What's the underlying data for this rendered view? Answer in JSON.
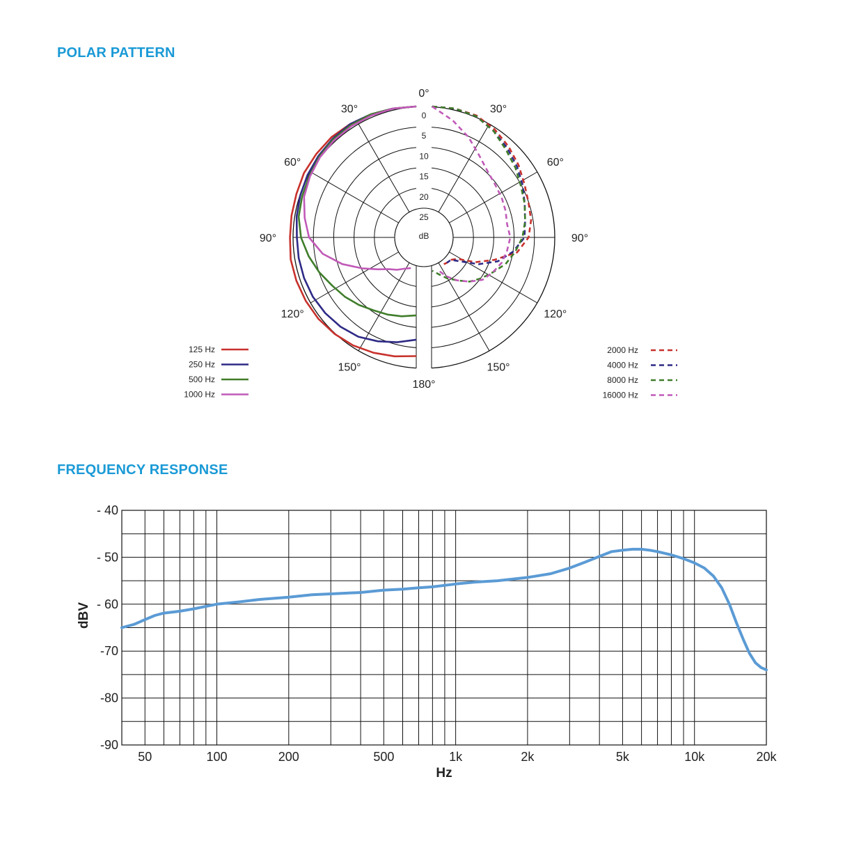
{
  "sections": {
    "polar_title": "POLAR PATTERN",
    "frequency_title": "FREQUENCY RESPONSE"
  },
  "colors": {
    "title": "#1a9ad6",
    "125 Hz": "#c8312c",
    "250 Hz": "#2e2a86",
    "500 Hz": "#3f7d2a",
    "1000 Hz": "#c05ab8",
    "2000 Hz": "#c8312c",
    "4000 Hz": "#2e2a86",
    "8000 Hz": "#3f7d2a",
    "16000 Hz": "#c05ab8",
    "response": "#5b9bd5"
  },
  "chart_data": [
    {
      "type": "polar",
      "angle_labels": [
        "0°",
        "30°",
        "60°",
        "90°",
        "120°",
        "150°",
        "180°",
        "30°",
        "60°",
        "90°",
        "120°",
        "150°"
      ],
      "radial_labels": [
        "0",
        "5",
        "10",
        "15",
        "20",
        "25"
      ],
      "center_label": "dB",
      "angle_unit": "degrees",
      "rlim": [
        0,
        25
      ],
      "legend_left": [
        "125 Hz",
        "250 Hz",
        "500 Hz",
        "1000 Hz"
      ],
      "legend_right": [
        "2000 Hz",
        "4000 Hz",
        "8000 Hz",
        "16000 Hz"
      ],
      "series": [
        {
          "name": "125 Hz",
          "side": "left",
          "style": "solid",
          "theta": [
            0,
            10,
            20,
            30,
            40,
            50,
            60,
            70,
            80,
            90,
            100,
            110,
            120,
            130,
            140,
            150,
            160,
            170,
            180
          ],
          "db": [
            0,
            0,
            0,
            0,
            0,
            0.3,
            0.5,
            1,
            1.2,
            1.3,
            1,
            1,
            1,
            1,
            1.2,
            1.5,
            2,
            2.5,
            3
          ]
        },
        {
          "name": "250 Hz",
          "side": "left",
          "style": "solid",
          "theta": [
            0,
            10,
            20,
            30,
            40,
            50,
            60,
            70,
            80,
            90,
            100,
            110,
            120,
            130,
            140,
            150,
            160,
            170,
            180
          ],
          "db": [
            0,
            0,
            0,
            0,
            0.5,
            1,
            1.5,
            2,
            2.5,
            3,
            3,
            3,
            3,
            3.2,
            3.5,
            4,
            5,
            6,
            7
          ]
        },
        {
          "name": "500 Hz",
          "side": "left",
          "style": "solid",
          "theta": [
            0,
            10,
            20,
            30,
            40,
            50,
            60,
            70,
            80,
            90,
            100,
            110,
            120,
            130,
            140,
            150,
            160,
            170,
            180
          ],
          "db": [
            0,
            0,
            0,
            0.3,
            0.7,
            1.3,
            2,
            2.5,
            3,
            4,
            5.5,
            7,
            8.5,
            9.5,
            10.5,
            11.5,
            12,
            12.5,
            13
          ]
        },
        {
          "name": "1000 Hz",
          "side": "left",
          "style": "solid",
          "theta": [
            0,
            10,
            20,
            30,
            40,
            50,
            60,
            70,
            80,
            90,
            100,
            110,
            120,
            130,
            140,
            150,
            160,
            170
          ],
          "db": [
            0,
            0,
            0.3,
            0.6,
            1,
            1.5,
            2.2,
            3,
            4.5,
            6,
            9,
            13,
            17,
            20,
            22,
            23,
            24,
            24.5
          ]
        },
        {
          "name": "2000 Hz",
          "side": "right",
          "style": "dashed",
          "theta": [
            0,
            10,
            20,
            30,
            40,
            50,
            60,
            70,
            80,
            90,
            100,
            110,
            120,
            130,
            140,
            150,
            160
          ],
          "db": [
            0,
            0,
            0.3,
            1.5,
            3,
            4.5,
            6,
            7,
            7.5,
            8.5,
            11,
            16,
            20,
            24,
            25,
            25,
            25
          ]
        },
        {
          "name": "4000 Hz",
          "side": "right",
          "style": "dashed",
          "theta": [
            0,
            10,
            20,
            30,
            40,
            50,
            60,
            70,
            80,
            90,
            100,
            110,
            120,
            130,
            140,
            150
          ],
          "db": [
            0,
            0,
            0.5,
            2,
            3.5,
            5,
            6.5,
            8,
            9,
            9.5,
            12,
            15,
            19,
            23,
            25,
            25
          ]
        },
        {
          "name": "8000 Hz",
          "side": "right",
          "style": "dashed",
          "theta": [
            0,
            10,
            20,
            30,
            40,
            50,
            60,
            70,
            80,
            90,
            100,
            110,
            120,
            130,
            140,
            150,
            160,
            170,
            180
          ],
          "db": [
            0,
            0,
            0.5,
            2,
            4,
            5.5,
            7,
            8,
            9,
            10,
            11.5,
            13,
            15,
            16.5,
            18,
            20,
            21.5,
            23,
            24
          ]
        },
        {
          "name": "16000 Hz",
          "side": "right",
          "style": "dashed",
          "theta": [
            0,
            10,
            20,
            30,
            40,
            50,
            60,
            70,
            80,
            90,
            100,
            110,
            120,
            130,
            140,
            150,
            160,
            170
          ],
          "db": [
            0,
            3,
            6,
            9,
            11,
            12,
            12.5,
            13,
            13.5,
            13,
            13.5,
            14,
            15,
            16,
            18,
            20,
            22,
            24
          ]
        }
      ]
    },
    {
      "type": "line",
      "xlabel": "Hz",
      "ylabel": "dBV",
      "x_scale": "log",
      "xlim": [
        40,
        20000
      ],
      "ylim": [
        -90,
        -40
      ],
      "x_tick_values": [
        50,
        100,
        200,
        500,
        1000,
        2000,
        5000,
        10000,
        20000
      ],
      "x_tick_labels": [
        "50",
        "100",
        "200",
        "500",
        "1k",
        "2k",
        "5k",
        "10k",
        "20k"
      ],
      "y_tick_values": [
        -40,
        -50,
        -60,
        -70,
        -80,
        -90
      ],
      "y_tick_labels": [
        "- 40",
        "- 50",
        "- 60",
        "-70",
        "-80",
        "-90"
      ],
      "grid": true,
      "series": [
        {
          "x": [
            40,
            45,
            50,
            55,
            60,
            70,
            80,
            100,
            125,
            150,
            200,
            250,
            300,
            400,
            500,
            600,
            700,
            800,
            1000,
            1200,
            1500,
            2000,
            2500,
            3000,
            3500,
            4000,
            4500,
            5000,
            5500,
            6000,
            6500,
            7000,
            8000,
            9000,
            10000,
            11000,
            12000,
            13000,
            14000,
            15000,
            16000,
            17000,
            18000,
            19000,
            20000
          ],
          "y": [
            -65,
            -64.3,
            -63.3,
            -62.4,
            -61.9,
            -61.5,
            -61,
            -60,
            -59.5,
            -59,
            -58.5,
            -58,
            -57.8,
            -57.5,
            -57,
            -56.8,
            -56.5,
            -56.3,
            -55.7,
            -55.3,
            -55,
            -54.3,
            -53.5,
            -52.3,
            -51,
            -49.8,
            -48.8,
            -48.5,
            -48.3,
            -48.3,
            -48.5,
            -48.8,
            -49.5,
            -50.3,
            -51.2,
            -52.3,
            -54,
            -56.5,
            -60,
            -64,
            -67.5,
            -70.5,
            -72.5,
            -73.5,
            -74
          ]
        }
      ]
    }
  ]
}
